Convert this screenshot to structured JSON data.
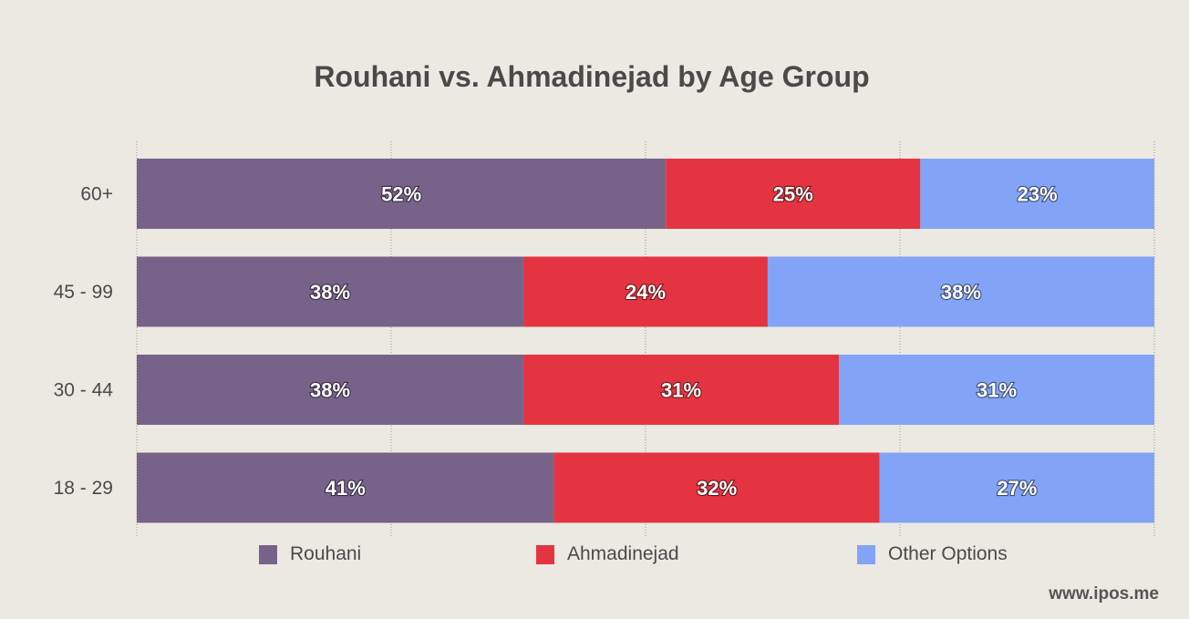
{
  "chart_data": {
    "type": "bar",
    "orientation": "horizontal",
    "stacked": true,
    "title": "Rouhani vs. Ahmadinejad by Age Group",
    "categories": [
      "60+",
      "45 - 99",
      "30 - 44",
      "18 - 29"
    ],
    "series": [
      {
        "name": "Rouhani",
        "color": "#776389",
        "values": [
          52,
          38,
          38,
          41
        ],
        "labels": [
          "52%",
          "38%",
          "38%",
          "41%"
        ]
      },
      {
        "name": "Ahmadinejad",
        "color": "#e53441",
        "values": [
          25,
          24,
          31,
          32
        ],
        "labels": [
          "25%",
          "24%",
          "31%",
          "32%"
        ]
      },
      {
        "name": "Other Options",
        "color": "#83a4f6",
        "values": [
          23,
          38,
          31,
          27
        ],
        "labels": [
          "23%",
          "38%",
          "31%",
          "27%"
        ]
      }
    ],
    "xlim": [
      0,
      100
    ],
    "grid": true,
    "legend_position": "bottom"
  },
  "source": "www.ipos.me"
}
